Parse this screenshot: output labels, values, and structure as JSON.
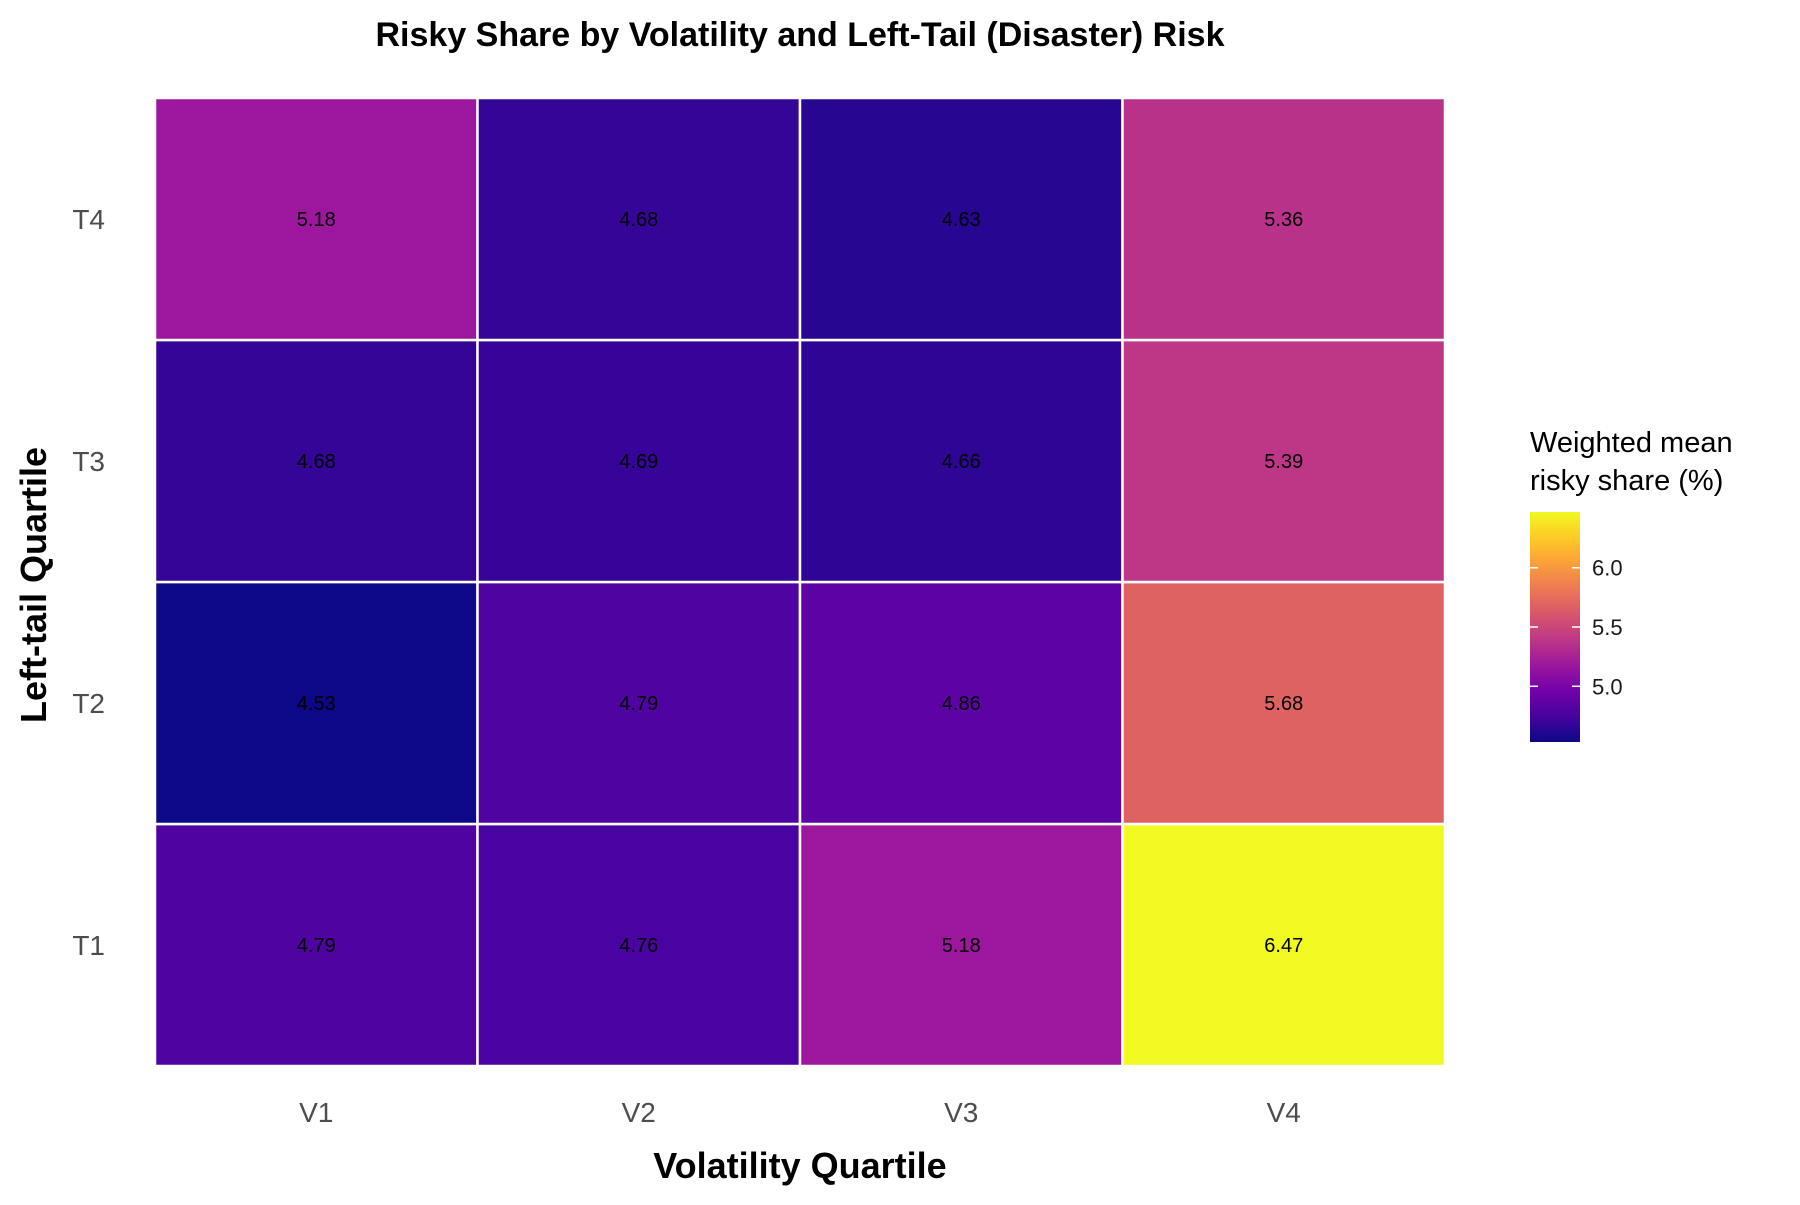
{
  "chart_data": {
    "type": "heatmap",
    "title": "Risky Share by Volatility and Left-Tail (Disaster) Risk",
    "xlabel": "Volatility Quartile",
    "ylabel": "Left-tail Quartile",
    "x_categories": [
      "V1",
      "V2",
      "V3",
      "V4"
    ],
    "y_categories": [
      "T1",
      "T2",
      "T3",
      "T4"
    ],
    "values": [
      [
        4.79,
        4.76,
        5.18,
        6.47
      ],
      [
        4.53,
        4.79,
        4.86,
        5.68
      ],
      [
        4.68,
        4.69,
        4.66,
        5.39
      ],
      [
        5.18,
        4.68,
        4.63,
        5.36
      ]
    ],
    "value_labels": [
      [
        "4.79",
        "4.76",
        "5.18",
        "6.47"
      ],
      [
        "4.53",
        "4.79",
        "4.86",
        "5.68"
      ],
      [
        "4.68",
        "4.69",
        "4.66",
        "5.39"
      ],
      [
        "5.18",
        "4.68",
        "4.63",
        "5.36"
      ]
    ],
    "color_scale": {
      "name": "plasma",
      "min": 4.53,
      "max": 6.47,
      "stops": [
        "#0d0887",
        "#46039f",
        "#7201a8",
        "#9c179e",
        "#bd3786",
        "#d8576b",
        "#ed7953",
        "#fb9f3a",
        "#fdca26",
        "#f0f921"
      ]
    },
    "legend": {
      "title_lines": [
        "Weighted mean",
        "risky share (%)"
      ],
      "ticks": [
        5.0,
        5.5,
        6.0
      ],
      "tick_labels": [
        "5.0",
        "5.5",
        "6.0"
      ],
      "placement": "right"
    },
    "grid": false,
    "cell_border_color": "#ffffff"
  }
}
